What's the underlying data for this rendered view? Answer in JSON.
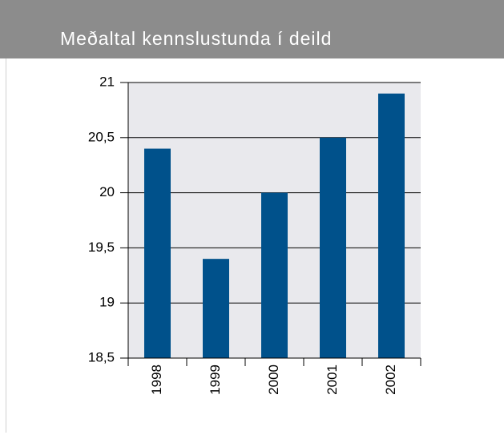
{
  "chart_data": {
    "type": "bar",
    "title": "Meðaltal kennslustunda í deild",
    "categories": [
      "1998",
      "1999",
      "2000",
      "2001",
      "2002"
    ],
    "values": [
      20.4,
      19.4,
      20.0,
      20.5,
      20.9
    ],
    "color": "#00518b",
    "ylim": [
      18.5,
      21
    ],
    "yticks": [
      {
        "value": 18.5,
        "label": "18,5"
      },
      19,
      {
        "value": 19.5,
        "label": "19,5"
      },
      20,
      {
        "value": 20.5,
        "label": "20,5"
      },
      21
    ],
    "grid": true
  }
}
